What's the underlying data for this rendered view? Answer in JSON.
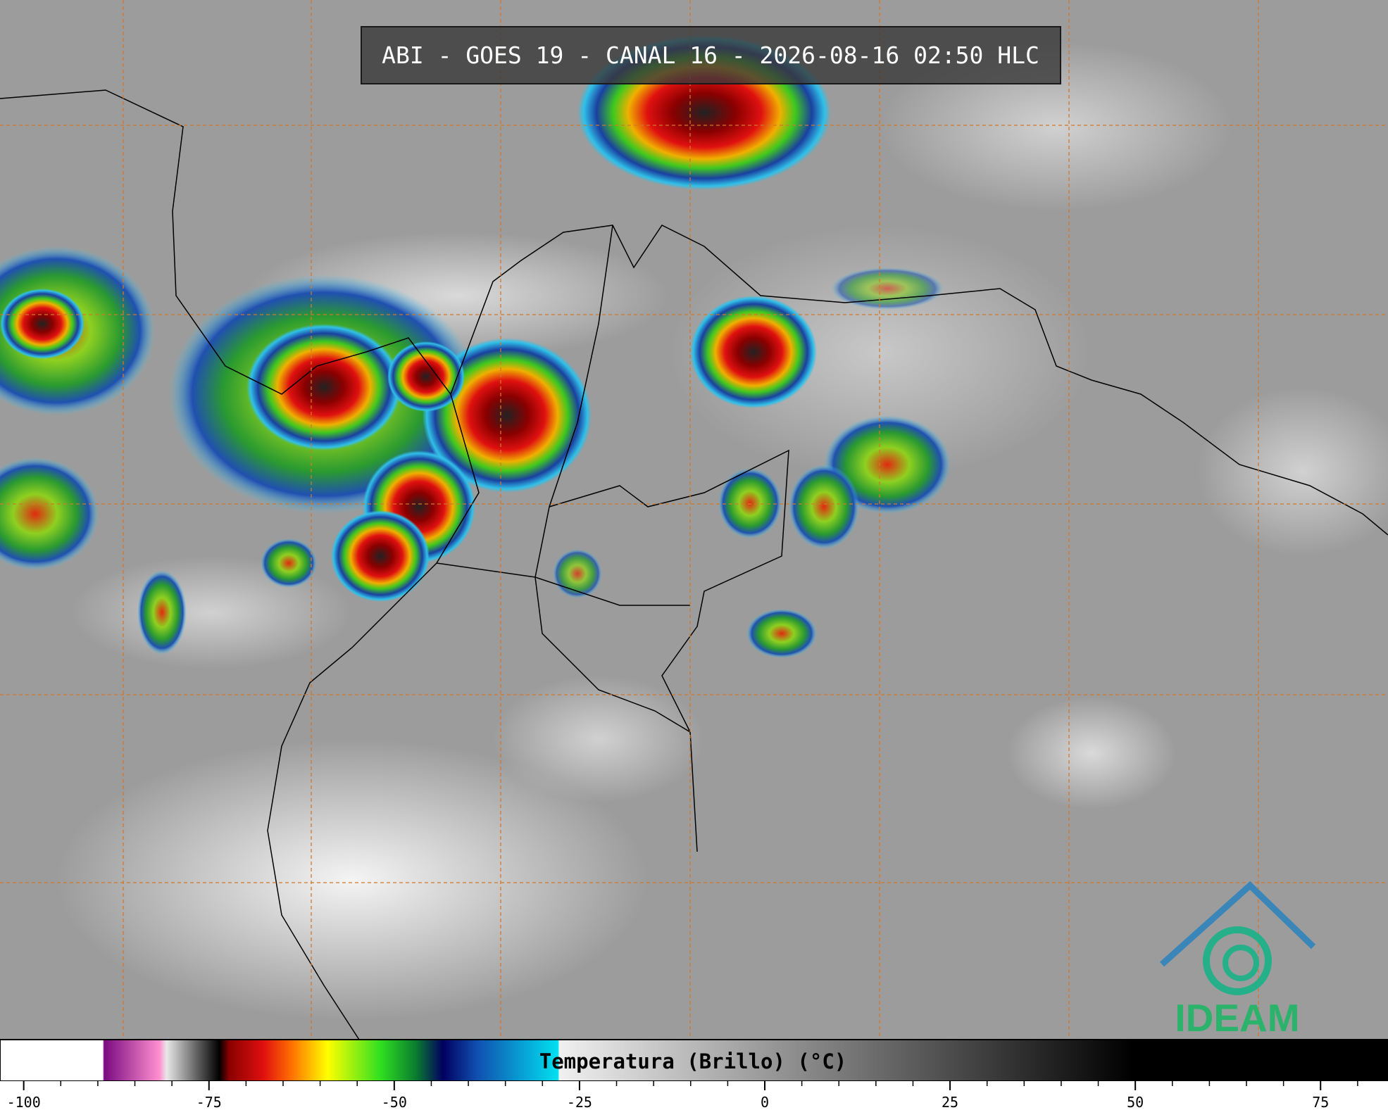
{
  "title": "ABI - GOES 19 - CANAL 16 - 2026-08-16 02:50 HLC",
  "colorbar": {
    "label": "Temperatura (Brillo) (°C)",
    "range": [
      -103.2,
      84.1
    ],
    "ticks": [
      -100,
      -75,
      -50,
      -25,
      0,
      25,
      50,
      75
    ]
  },
  "logo": "IDEAM"
}
